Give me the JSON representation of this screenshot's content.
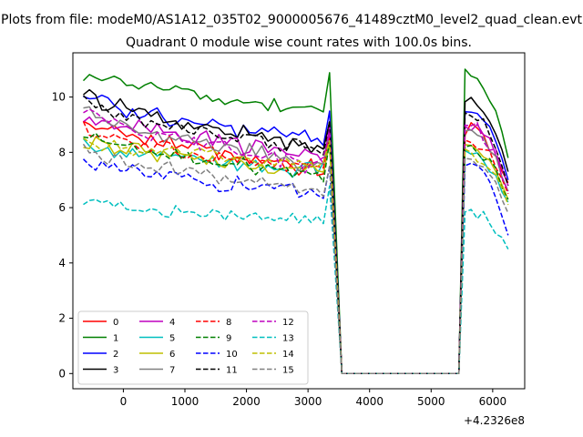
{
  "figure": {
    "suptitle": "Plots from file: modeM0/AS1A12_035T02_9000005676_41489cztM0_level2_quad_clean.evt"
  },
  "chart_data": {
    "type": "line",
    "title": "Quadrant 0 module wise count rates with 100.0s bins.",
    "xlabel": "",
    "ylabel": "",
    "x_offset_text": "+4.2326e8",
    "xlim": [
      -820,
      6520
    ],
    "ylim": [
      -0.55,
      11.6
    ],
    "xticks": [
      0,
      1000,
      2000,
      3000,
      4000,
      5000,
      6000
    ],
    "yticks": [
      0,
      2,
      4,
      6,
      8,
      10
    ],
    "xtick_labels": [
      "0",
      "1000",
      "2000",
      "3000",
      "4000",
      "5000",
      "6000"
    ],
    "ytick_labels": [
      "0",
      "2",
      "4",
      "6",
      "8",
      "10"
    ],
    "grid": false,
    "legend_position": "lower-left",
    "legend_columns": 4,
    "gap_level": 0,
    "segment1": {
      "x_start": -650,
      "x_step": 100,
      "count": 41
    },
    "gap": {
      "x_start": 3550,
      "x_end": 5450
    },
    "segment2": {
      "x_start": 5450,
      "x_step": 100,
      "count": 9
    },
    "series": [
      {
        "name": "0",
        "color": "#ff0000",
        "dash": "solid",
        "base": 9.2,
        "end": 7.4,
        "resume": 8.8,
        "last": 6.9,
        "wiggle": 0.45
      },
      {
        "name": "1",
        "color": "#008000",
        "dash": "solid",
        "base": 10.9,
        "end": 9.5,
        "resume": 10.8,
        "last": 7.8,
        "wiggle": 0.35
      },
      {
        "name": "2",
        "color": "#0000ff",
        "dash": "solid",
        "base": 10.1,
        "end": 8.4,
        "resume": 9.6,
        "last": 7.0,
        "wiggle": 0.4
      },
      {
        "name": "3",
        "color": "#000000",
        "dash": "solid",
        "base": 10.2,
        "end": 8.1,
        "resume": 9.8,
        "last": 7.3,
        "wiggle": 0.35
      },
      {
        "name": "4",
        "color": "#bf00bf",
        "dash": "solid",
        "base": 9.4,
        "end": 7.8,
        "resume": 9.0,
        "last": 6.8,
        "wiggle": 0.4
      },
      {
        "name": "5",
        "color": "#00bfbf",
        "dash": "solid",
        "base": 8.3,
        "end": 7.3,
        "resume": 8.0,
        "last": 6.2,
        "wiggle": 0.35
      },
      {
        "name": "6",
        "color": "#bfbf00",
        "dash": "solid",
        "base": 8.4,
        "end": 7.3,
        "resume": 8.2,
        "last": 6.3,
        "wiggle": 0.35
      },
      {
        "name": "7",
        "color": "#808080",
        "dash": "solid",
        "base": 9.5,
        "end": 7.5,
        "resume": 8.7,
        "last": 6.6,
        "wiggle": 0.4
      },
      {
        "name": "8",
        "color": "#ff0000",
        "dash": "dashed",
        "base": 8.9,
        "end": 7.3,
        "resume": 8.5,
        "last": 6.5,
        "wiggle": 0.4
      },
      {
        "name": "9",
        "color": "#008000",
        "dash": "dashed",
        "base": 8.6,
        "end": 7.1,
        "resume": 8.2,
        "last": 6.3,
        "wiggle": 0.35
      },
      {
        "name": "10",
        "color": "#0000ff",
        "dash": "dashed",
        "base": 7.7,
        "end": 6.5,
        "resume": 7.5,
        "last": 5.0,
        "wiggle": 0.35
      },
      {
        "name": "11",
        "color": "#000000",
        "dash": "dashed",
        "base": 9.9,
        "end": 8.0,
        "resume": 9.5,
        "last": 6.8,
        "wiggle": 0.35
      },
      {
        "name": "12",
        "color": "#bf00bf",
        "dash": "dashed",
        "base": 9.6,
        "end": 7.5,
        "resume": 9.0,
        "last": 6.6,
        "wiggle": 0.4
      },
      {
        "name": "13",
        "color": "#00bfbf",
        "dash": "dashed",
        "base": 6.25,
        "end": 5.5,
        "resume": 5.9,
        "last": 4.5,
        "wiggle": 0.3
      },
      {
        "name": "14",
        "color": "#bfbf00",
        "dash": "dashed",
        "base": 8.5,
        "end": 7.5,
        "resume": 8.0,
        "last": 6.1,
        "wiggle": 0.35
      },
      {
        "name": "15",
        "color": "#808080",
        "dash": "dashed",
        "base": 8.1,
        "end": 6.6,
        "resume": 7.8,
        "last": 5.8,
        "wiggle": 0.35
      }
    ]
  }
}
